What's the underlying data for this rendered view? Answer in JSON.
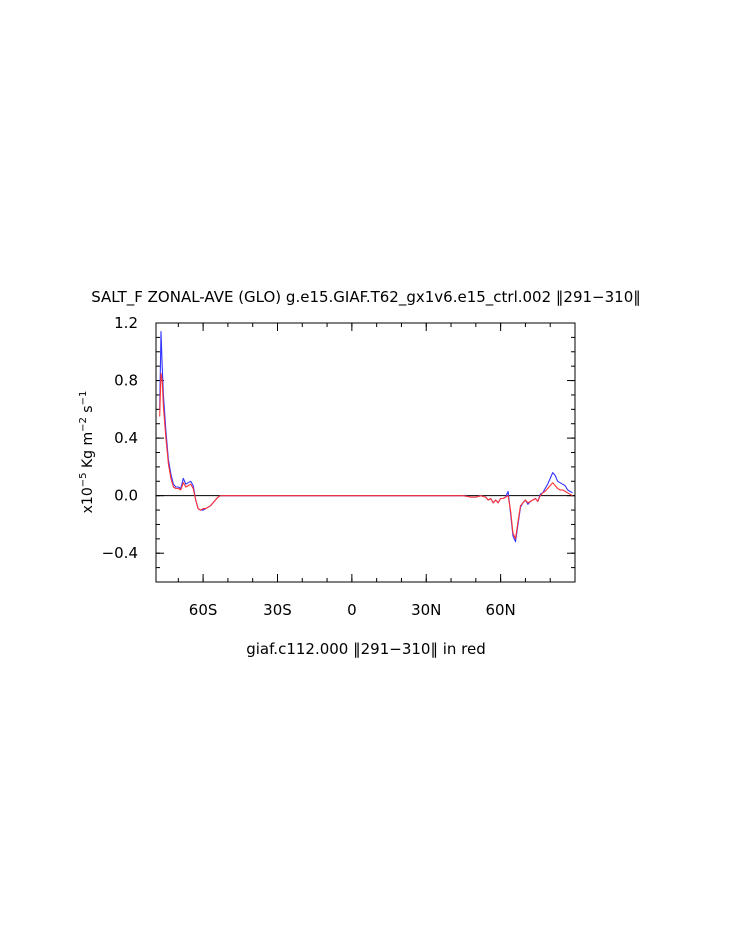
{
  "chart_data": {
    "type": "line",
    "title": "SALT_F ZONAL-AVE (GLO) g.e15.GIAF.T62_gx1v6.e15_ctrl.002 ‖291−310‖",
    "xlabel": "giaf.c112.000 ‖291−310‖ in red",
    "ylabel": {
      "prefix": "x10",
      "exp1": "−5",
      "mid": " Kg m",
      "exp2": "−2",
      "mid2": " s",
      "exp3": "−1"
    },
    "xlim": [
      -79,
      90
    ],
    "ylim": [
      -0.6,
      1.2
    ],
    "x_ticks": [
      {
        "value": -60,
        "label": "60S"
      },
      {
        "value": -30,
        "label": "30S"
      },
      {
        "value": 0,
        "label": "0"
      },
      {
        "value": 30,
        "label": "30N"
      },
      {
        "value": 60,
        "label": "60N"
      }
    ],
    "y_ticks": [
      {
        "value": 1.2,
        "label": "1.2"
      },
      {
        "value": 0.8,
        "label": "0.8"
      },
      {
        "value": 0.4,
        "label": "0.4"
      },
      {
        "value": 0.0,
        "label": "0.0"
      },
      {
        "value": -0.4,
        "label": "−0.4"
      }
    ],
    "zero_line": true,
    "series": [
      {
        "color": "#3333ff",
        "x": [
          -77.5,
          -77,
          -76.5,
          -76,
          -75,
          -74,
          -73,
          -72,
          -71,
          -70,
          -69,
          -68,
          -67,
          -66,
          -65,
          -64,
          -63,
          -62,
          -61,
          -60,
          -59,
          -58,
          -57,
          -56,
          -55,
          -54,
          -53,
          -52,
          -50,
          -40,
          -20,
          0,
          20,
          40,
          45,
          48,
          50,
          52,
          54,
          55,
          56,
          57,
          58,
          59,
          60,
          61,
          62,
          63,
          64,
          65,
          66,
          67,
          68,
          69,
          70,
          71,
          72,
          73,
          74,
          75,
          76,
          77,
          78,
          79,
          80,
          81,
          82,
          83,
          84,
          85,
          86,
          87,
          88,
          89
        ],
        "y": [
          0.6,
          1.14,
          0.9,
          0.7,
          0.45,
          0.25,
          0.15,
          0.08,
          0.06,
          0.06,
          0.05,
          0.12,
          0.08,
          0.09,
          0.1,
          0.07,
          -0.03,
          -0.09,
          -0.1,
          -0.1,
          -0.09,
          -0.08,
          -0.07,
          -0.05,
          -0.03,
          -0.01,
          0.0,
          0.0,
          0.0,
          0.0,
          0.0,
          0.0,
          0.0,
          0.0,
          0.0,
          -0.01,
          -0.01,
          0.0,
          -0.01,
          -0.03,
          -0.02,
          -0.05,
          -0.03,
          -0.05,
          -0.02,
          -0.02,
          -0.01,
          0.03,
          -0.12,
          -0.28,
          -0.32,
          -0.2,
          -0.08,
          -0.05,
          -0.03,
          -0.06,
          -0.04,
          -0.03,
          -0.02,
          -0.04,
          0.01,
          0.02,
          0.05,
          0.08,
          0.12,
          0.16,
          0.14,
          0.1,
          0.09,
          0.08,
          0.07,
          0.04,
          0.03,
          0.02
        ]
      },
      {
        "color": "#ff3333",
        "x": [
          -77.5,
          -77,
          -76.5,
          -76,
          -75,
          -74,
          -73,
          -72,
          -71,
          -70,
          -69,
          -68,
          -67,
          -66,
          -65,
          -64,
          -63,
          -62,
          -61,
          -60,
          -59,
          -58,
          -57,
          -56,
          -55,
          -54,
          -53,
          -52,
          -50,
          -40,
          -20,
          0,
          20,
          40,
          45,
          48,
          50,
          52,
          54,
          55,
          56,
          57,
          58,
          59,
          60,
          61,
          62,
          63,
          64,
          65,
          66,
          67,
          68,
          69,
          70,
          71,
          72,
          73,
          74,
          75,
          76,
          77,
          78,
          79,
          80,
          81,
          82,
          83,
          84,
          85,
          86,
          87,
          88,
          89
        ],
        "y": [
          0.55,
          0.85,
          0.8,
          0.62,
          0.4,
          0.22,
          0.12,
          0.06,
          0.05,
          0.05,
          0.04,
          0.09,
          0.06,
          0.07,
          0.08,
          0.05,
          -0.03,
          -0.09,
          -0.1,
          -0.09,
          -0.09,
          -0.08,
          -0.07,
          -0.05,
          -0.03,
          -0.01,
          0.0,
          0.0,
          0.0,
          0.0,
          0.0,
          0.0,
          0.0,
          0.0,
          0.0,
          -0.01,
          -0.01,
          0.0,
          -0.01,
          -0.03,
          -0.02,
          -0.05,
          -0.03,
          -0.05,
          -0.02,
          -0.02,
          -0.01,
          0.0,
          -0.1,
          -0.26,
          -0.3,
          -0.18,
          -0.07,
          -0.05,
          -0.03,
          -0.05,
          -0.04,
          -0.03,
          -0.02,
          -0.04,
          0.0,
          0.02,
          0.03,
          0.05,
          0.07,
          0.09,
          0.07,
          0.05,
          0.04,
          0.04,
          0.03,
          0.02,
          0.01,
          0.0
        ]
      }
    ]
  }
}
